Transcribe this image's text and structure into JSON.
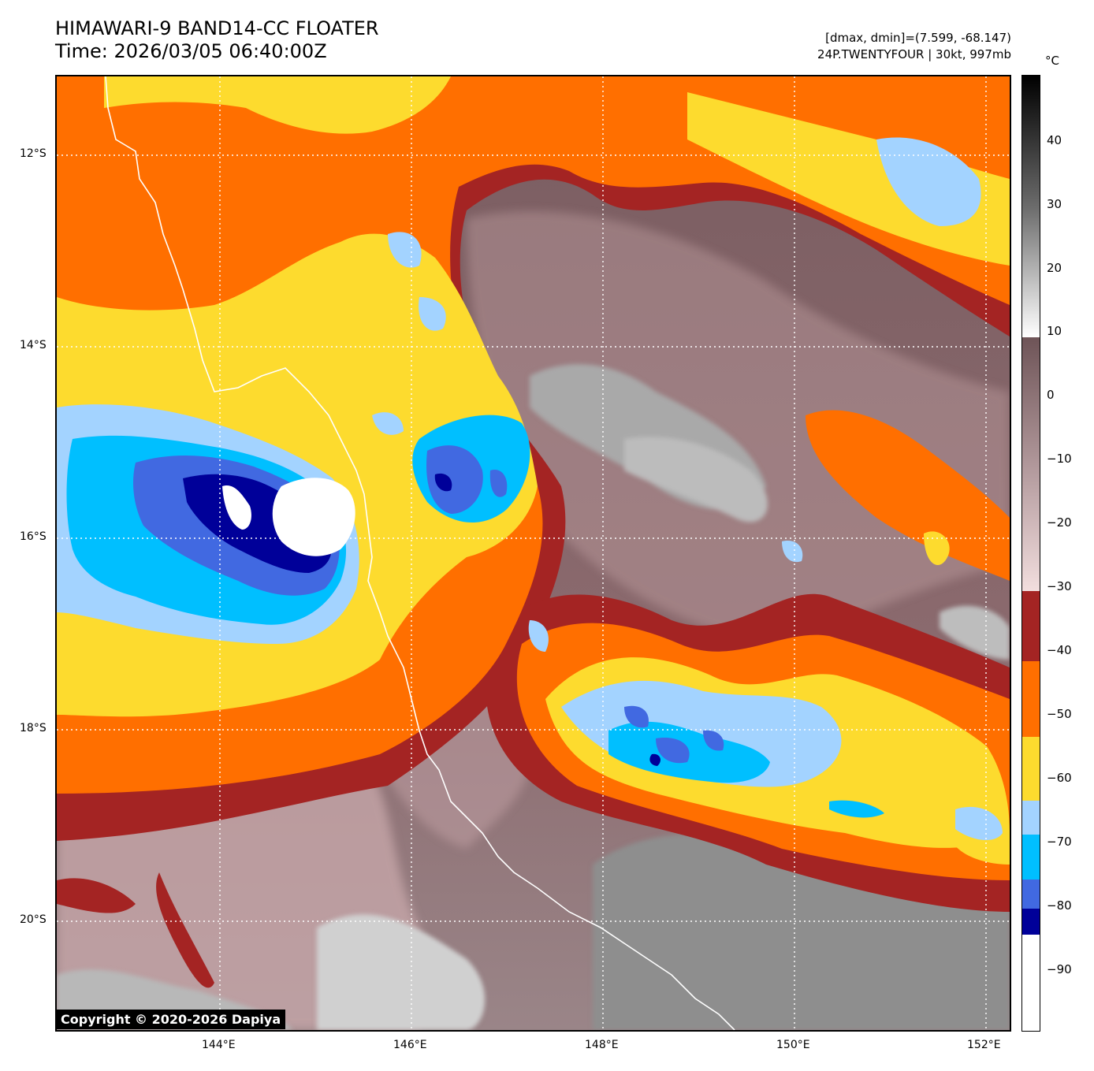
{
  "header": {
    "title_line1": "HIMAWARI-9 BAND14-CC FLOATER",
    "title_line2": "Time: 2026/03/05 06:40:00Z",
    "info_line1": "[dmax, dmin]=(7.599, -68.147)",
    "info_line2": "24P.TWENTYFOUR | 30kt, 997mb"
  },
  "map": {
    "lat_labels": [
      "12°S",
      "14°S",
      "16°S",
      "18°S",
      "20°S"
    ],
    "lon_labels": [
      "144°E",
      "146°E",
      "148°E",
      "150°E",
      "152°E"
    ],
    "copyright": "Copyright © 2020-2026 Dapiya"
  },
  "colorbar": {
    "unit": "°C",
    "ticks": [
      "40",
      "30",
      "20",
      "10",
      "0",
      "−10",
      "−20",
      "−30",
      "−40",
      "−50",
      "−60",
      "−70",
      "−80",
      "−90"
    ],
    "colors": {
      "white_core": "#ffffff",
      "navy": "#000099",
      "royal_blue": "#4169e1",
      "cyan": "#00bfff",
      "light_blue": "#a3d3ff",
      "yellow": "#fddb2e",
      "orange": "#ff6f00",
      "dark_red": "#a42423",
      "mauve_light": "#e8d2d2",
      "mauve_dark": "#6e5457",
      "gray": "#8e8e8e"
    }
  }
}
